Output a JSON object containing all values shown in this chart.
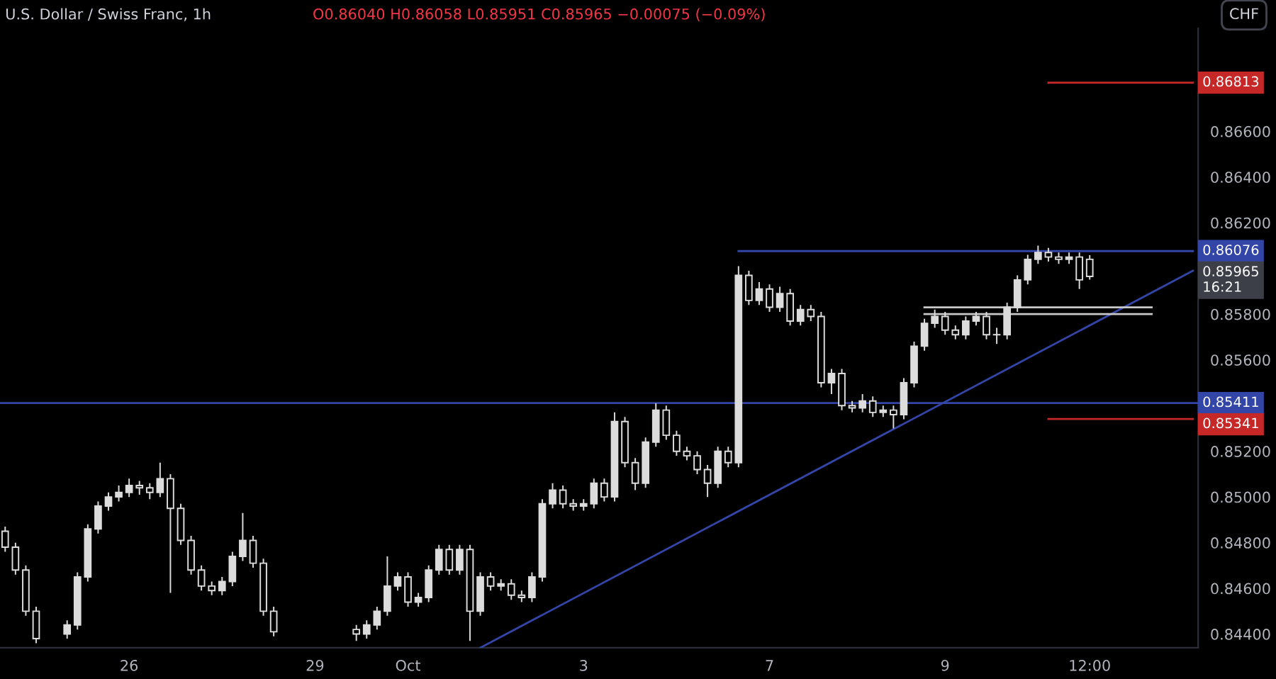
{
  "chart_data": {
    "type": "candlestick",
    "title": "U.S. Dollar / Swiss Franc, 1h",
    "subtitle": "O0.86040 H0.86058 L0.85951 C0.85965 −0.00075 (−0.09%)",
    "categories": [
      null,
      null,
      null,
      null,
      null,
      null,
      null,
      null,
      null,
      null,
      null,
      null,
      "26",
      null,
      null,
      null,
      null,
      null,
      null,
      null,
      null,
      null,
      null,
      null,
      null,
      null,
      null,
      null,
      null,
      null,
      "29",
      null,
      null,
      null,
      null,
      null,
      null,
      null,
      null,
      "Oct",
      null,
      null,
      null,
      null,
      null,
      null,
      null,
      null,
      null,
      null,
      null,
      null,
      null,
      null,
      null,
      null,
      "3",
      null,
      null,
      null,
      null,
      null,
      null,
      null,
      null,
      null,
      null,
      null,
      null,
      null,
      null,
      null,
      null,
      null,
      "7",
      null,
      null,
      null,
      null,
      null,
      null,
      null,
      null,
      null,
      null,
      null,
      null,
      null,
      null,
      null,
      null,
      "9",
      null,
      null,
      null,
      null,
      null,
      null,
      null,
      null,
      null,
      null,
      null,
      null,
      null,
      "12:00",
      null,
      null,
      null,
      null,
      null,
      null,
      null,
      null,
      null,
      null
    ],
    "ylim": [
      0.8434,
      0.8705
    ],
    "yticks": [
      {
        "value": 0.844,
        "label": "0.84400"
      },
      {
        "value": 0.846,
        "label": "0.84600"
      },
      {
        "value": 0.848,
        "label": "0.84800"
      },
      {
        "value": 0.85,
        "label": "0.85000"
      },
      {
        "value": 0.852,
        "label": "0.85200"
      },
      {
        "value": 0.856,
        "label": "0.85600"
      },
      {
        "value": 0.858,
        "label": "0.85800"
      },
      {
        "value": 0.862,
        "label": "0.86200"
      },
      {
        "value": 0.864,
        "label": "0.86400"
      },
      {
        "value": 0.866,
        "label": "0.86600"
      }
    ],
    "series": [
      {
        "color": "#dcdcdc",
        "ohlc": [
          [
            0.8485,
            0.8487,
            0.8476,
            0.8478
          ],
          [
            0.8478,
            0.848,
            0.8466,
            0.8468
          ],
          [
            0.8468,
            0.847,
            0.8448,
            0.845
          ],
          [
            0.845,
            0.8452,
            0.8436,
            0.8438
          ],
          null,
          null,
          [
            0.844,
            0.8446,
            0.8438,
            0.8444
          ],
          [
            0.8444,
            0.8467,
            0.8442,
            0.8465
          ],
          [
            0.8465,
            0.8488,
            0.8463,
            0.8486
          ],
          [
            0.8486,
            0.8498,
            0.8484,
            0.8496
          ],
          [
            0.8496,
            0.8502,
            0.8494,
            0.85
          ],
          [
            0.85,
            0.8505,
            0.8498,
            0.8502
          ],
          [
            0.8502,
            0.8508,
            0.85,
            0.8505
          ],
          [
            0.8505,
            0.8507,
            0.8501,
            0.8504
          ],
          [
            0.8504,
            0.8506,
            0.8499,
            0.8502
          ],
          [
            0.8502,
            0.8515,
            0.85,
            0.8508
          ],
          [
            0.8508,
            0.851,
            0.8458,
            0.8495
          ],
          [
            0.8495,
            0.8497,
            0.8479,
            0.8481
          ],
          [
            0.8481,
            0.8483,
            0.8466,
            0.8468
          ],
          [
            0.8468,
            0.847,
            0.8459,
            0.8461
          ],
          [
            0.8461,
            0.8463,
            0.8457,
            0.8459
          ],
          [
            0.8459,
            0.8465,
            0.8457,
            0.8463
          ],
          [
            0.8463,
            0.8476,
            0.8461,
            0.8474
          ],
          [
            0.8474,
            0.8493,
            0.8472,
            0.8481
          ],
          [
            0.8481,
            0.8483,
            0.8469,
            0.8471
          ],
          [
            0.8471,
            0.8473,
            0.8448,
            0.845
          ],
          [
            0.845,
            0.8452,
            0.8439,
            0.8441
          ],
          null,
          null,
          null,
          null,
          null,
          null,
          null,
          [
            0.8442,
            0.8444,
            0.8437,
            0.844
          ],
          [
            0.844,
            0.8446,
            0.8438,
            0.8444
          ],
          [
            0.8444,
            0.8452,
            0.8442,
            0.845
          ],
          [
            0.845,
            0.8474,
            0.8448,
            0.8461
          ],
          [
            0.8461,
            0.8467,
            0.8459,
            0.8465
          ],
          [
            0.8465,
            0.8467,
            0.8452,
            0.8454
          ],
          [
            0.8454,
            0.8458,
            0.8452,
            0.8456
          ],
          [
            0.8456,
            0.847,
            0.8454,
            0.8468
          ],
          [
            0.8468,
            0.8479,
            0.8466,
            0.8477
          ],
          [
            0.8477,
            0.8479,
            0.8466,
            0.8468
          ],
          [
            0.8468,
            0.8479,
            0.8466,
            0.8477
          ],
          [
            0.8477,
            0.8479,
            0.8437,
            0.845
          ],
          [
            0.845,
            0.8467,
            0.8448,
            0.8465
          ],
          [
            0.8465,
            0.8467,
            0.8459,
            0.8461
          ],
          [
            0.8461,
            0.8464,
            0.8459,
            0.8462
          ],
          [
            0.8462,
            0.8464,
            0.8455,
            0.8457
          ],
          [
            0.8457,
            0.8459,
            0.8454,
            0.8456
          ],
          [
            0.8456,
            0.8467,
            0.8454,
            0.8465
          ],
          [
            0.8465,
            0.8499,
            0.8463,
            0.8497
          ],
          [
            0.8497,
            0.8506,
            0.8495,
            0.8503
          ],
          [
            0.8503,
            0.8505,
            0.8495,
            0.8497
          ],
          [
            0.8497,
            0.8499,
            0.8494,
            0.8496
          ],
          [
            0.8496,
            0.8499,
            0.8494,
            0.8497
          ],
          [
            0.8497,
            0.8508,
            0.8495,
            0.8506
          ],
          [
            0.8506,
            0.8508,
            0.8498,
            0.85
          ],
          [
            0.85,
            0.8537,
            0.8498,
            0.8533
          ],
          [
            0.8533,
            0.8535,
            0.8513,
            0.8515
          ],
          [
            0.8515,
            0.8517,
            0.8503,
            0.8506
          ],
          [
            0.8506,
            0.8526,
            0.8504,
            0.8524
          ],
          [
            0.8524,
            0.8541,
            0.8522,
            0.8538
          ],
          [
            0.8538,
            0.854,
            0.8525,
            0.8527
          ],
          [
            0.8527,
            0.8529,
            0.8518,
            0.852
          ],
          [
            0.852,
            0.8522,
            0.8516,
            0.8518
          ],
          [
            0.8518,
            0.852,
            0.851,
            0.8512
          ],
          [
            0.8512,
            0.8514,
            0.85,
            0.8506
          ],
          [
            0.8506,
            0.8522,
            0.8504,
            0.852
          ],
          [
            0.852,
            0.8522,
            0.8513,
            0.8515
          ],
          [
            0.8515,
            0.8601,
            0.8513,
            0.8597
          ],
          [
            0.8597,
            0.8599,
            0.8584,
            0.8586
          ],
          [
            0.8586,
            0.8594,
            0.8584,
            0.8591
          ],
          [
            0.8591,
            0.8593,
            0.8581,
            0.8583
          ],
          [
            0.8583,
            0.8592,
            0.8581,
            0.8589
          ],
          [
            0.8589,
            0.8591,
            0.8575,
            0.8577
          ],
          [
            0.8577,
            0.8584,
            0.8575,
            0.8582
          ],
          [
            0.8582,
            0.8584,
            0.8577,
            0.8579
          ],
          [
            0.8579,
            0.8581,
            0.8548,
            0.855
          ],
          [
            0.855,
            0.8556,
            0.8545,
            0.8554
          ],
          [
            0.8554,
            0.8556,
            0.8538,
            0.854
          ],
          [
            0.854,
            0.8542,
            0.8537,
            0.8539
          ],
          [
            0.8539,
            0.8545,
            0.8537,
            0.8542
          ],
          [
            0.8542,
            0.8544,
            0.8535,
            0.8537
          ],
          [
            0.8537,
            0.854,
            0.8535,
            0.8538
          ],
          [
            0.8538,
            0.854,
            0.853,
            0.8536
          ],
          [
            0.8536,
            0.8552,
            0.8534,
            0.855
          ],
          [
            0.855,
            0.8568,
            0.8548,
            0.8566
          ],
          [
            0.8566,
            0.8578,
            0.8564,
            0.8576
          ],
          [
            0.8576,
            0.8582,
            0.8574,
            0.8579
          ],
          [
            0.8579,
            0.8581,
            0.8571,
            0.8573
          ],
          [
            0.8573,
            0.8575,
            0.8569,
            0.8571
          ],
          [
            0.8571,
            0.8579,
            0.8569,
            0.8577
          ],
          [
            0.8577,
            0.8581,
            0.8575,
            0.8579
          ],
          [
            0.8579,
            0.8581,
            0.8569,
            0.8571
          ],
          [
            0.8571,
            0.8574,
            0.8567,
            0.8571
          ],
          [
            0.8571,
            0.8585,
            0.8569,
            0.8583
          ],
          [
            0.8583,
            0.8597,
            0.8581,
            0.8595
          ],
          [
            0.8595,
            0.8606,
            0.8593,
            0.8604
          ],
          [
            0.8604,
            0.861,
            0.8602,
            0.8607
          ],
          [
            0.8607,
            0.8609,
            0.8603,
            0.8605
          ],
          [
            0.8605,
            0.8607,
            0.8602,
            0.8604
          ],
          [
            0.8604,
            0.8607,
            0.8602,
            0.8605
          ],
          [
            0.8605,
            0.8607,
            0.8591,
            0.8595
          ],
          [
            0.8604,
            0.86058,
            0.85951,
            0.85965
          ],
          null,
          null,
          null,
          null,
          null,
          null,
          null,
          null,
          null,
          null
        ]
      },
      {
        "type": "line",
        "color": "#3346a8",
        "values": [
          null,
          null,
          null,
          null,
          null,
          null,
          null,
          null,
          null,
          null,
          null,
          null,
          null,
          null,
          null,
          null,
          null,
          null,
          null,
          null,
          null,
          null,
          null,
          null,
          null,
          null,
          null,
          null,
          null,
          null,
          null,
          null,
          null,
          null,
          null,
          null,
          null,
          null,
          null,
          null,
          null,
          null,
          null,
          null,
          null,
          null,
          null,
          null,
          null,
          null,
          null,
          null,
          null,
          null,
          null,
          null,
          null,
          null,
          null,
          null,
          null,
          null,
          null,
          null,
          null,
          null,
          null,
          null,
          null,
          null,
          null,
          0.86076,
          null,
          null,
          null,
          null,
          null,
          null,
          null,
          null,
          null,
          null,
          null,
          null,
          null,
          null,
          null,
          null,
          null,
          null,
          null,
          null,
          null,
          null,
          null,
          null,
          null,
          null,
          null,
          null,
          null,
          null,
          null,
          null,
          null,
          null,
          null,
          null,
          null,
          null,
          null,
          null,
          null,
          null,
          null,
          0.86076
        ],
        "value_labels": [
          null,
          null,
          null,
          null,
          null,
          null,
          null,
          null,
          null,
          null,
          null,
          null,
          null,
          null,
          null,
          null,
          null,
          null,
          null,
          null,
          null,
          null,
          null,
          null,
          null,
          null,
          null,
          null,
          null,
          null,
          null,
          null,
          null,
          null,
          null,
          null,
          null,
          null,
          null,
          null,
          null,
          null,
          null,
          null,
          null,
          null,
          null,
          null,
          null,
          null,
          null,
          null,
          null,
          null,
          null,
          null,
          null,
          null,
          null,
          null,
          null,
          null,
          null,
          null,
          null,
          null,
          null,
          null,
          null,
          null,
          null,
          null,
          null,
          null,
          null,
          null,
          null,
          null,
          null,
          null,
          null,
          null,
          null,
          null,
          null,
          null,
          null,
          null,
          null,
          null,
          null,
          null,
          null,
          null,
          null,
          null,
          null,
          null,
          null,
          null,
          null,
          null,
          null,
          null,
          null,
          null,
          null,
          null,
          null,
          null,
          null,
          null,
          null,
          null,
          null,
          "0.86076"
        ]
      },
      {
        "type": "line",
        "color": "#c62828",
        "values": [
          null,
          null,
          null,
          null,
          null,
          null,
          null,
          null,
          null,
          null,
          null,
          null,
          null,
          null,
          null,
          null,
          null,
          null,
          null,
          null,
          null,
          null,
          null,
          null,
          null,
          null,
          null,
          null,
          null,
          null,
          null,
          null,
          null,
          null,
          null,
          null,
          null,
          null,
          null,
          null,
          null,
          null,
          null,
          null,
          null,
          null,
          null,
          null,
          null,
          null,
          null,
          null,
          null,
          null,
          null,
          null,
          null,
          null,
          null,
          null,
          null,
          null,
          null,
          null,
          null,
          null,
          null,
          null,
          null,
          null,
          null,
          null,
          null,
          null,
          null,
          null,
          null,
          null,
          null,
          null,
          null,
          null,
          null,
          null,
          null,
          null,
          null,
          null,
          null,
          null,
          null,
          null,
          null,
          null,
          null,
          null,
          null,
          null,
          null,
          null,
          null,
          0.86813,
          null,
          null,
          null,
          null,
          null,
          null,
          null,
          null,
          null,
          null,
          null,
          null,
          null,
          0.86813
        ],
        "value_labels": [
          null,
          null,
          null,
          null,
          null,
          null,
          null,
          null,
          null,
          null,
          null,
          null,
          null,
          null,
          null,
          null,
          null,
          null,
          null,
          null,
          null,
          null,
          null,
          null,
          null,
          null,
          null,
          null,
          null,
          null,
          null,
          null,
          null,
          null,
          null,
          null,
          null,
          null,
          null,
          null,
          null,
          null,
          null,
          null,
          null,
          null,
          null,
          null,
          null,
          null,
          null,
          null,
          null,
          null,
          null,
          null,
          null,
          null,
          null,
          null,
          null,
          null,
          null,
          null,
          null,
          null,
          null,
          null,
          null,
          null,
          null,
          null,
          null,
          null,
          null,
          null,
          null,
          null,
          null,
          null,
          null,
          null,
          null,
          null,
          null,
          null,
          null,
          null,
          null,
          null,
          null,
          null,
          null,
          null,
          null,
          null,
          null,
          null,
          null,
          null,
          null,
          null,
          null,
          null,
          null,
          null,
          null,
          null,
          null,
          null,
          null,
          null,
          null,
          null,
          null,
          "0.86813"
        ]
      },
      {
        "type": "line",
        "color": "#c62828",
        "values": [
          null,
          null,
          null,
          null,
          null,
          null,
          null,
          null,
          null,
          null,
          null,
          null,
          null,
          null,
          null,
          null,
          null,
          null,
          null,
          null,
          null,
          null,
          null,
          null,
          null,
          null,
          null,
          null,
          null,
          null,
          null,
          null,
          null,
          null,
          null,
          null,
          null,
          null,
          null,
          null,
          null,
          null,
          null,
          null,
          null,
          null,
          null,
          null,
          null,
          null,
          null,
          null,
          null,
          null,
          null,
          null,
          null,
          null,
          null,
          null,
          null,
          null,
          null,
          null,
          null,
          null,
          null,
          null,
          null,
          null,
          null,
          null,
          null,
          null,
          null,
          null,
          null,
          null,
          null,
          null,
          null,
          null,
          null,
          null,
          null,
          null,
          null,
          null,
          null,
          null,
          null,
          null,
          null,
          null,
          null,
          null,
          null,
          null,
          null,
          null,
          null,
          0.85341,
          null,
          null,
          null,
          null,
          null,
          null,
          null,
          null,
          null,
          null,
          null,
          null,
          null,
          0.85341
        ],
        "value_labels": [
          null,
          null,
          null,
          null,
          null,
          null,
          null,
          null,
          null,
          null,
          null,
          null,
          null,
          null,
          null,
          null,
          null,
          null,
          null,
          null,
          null,
          null,
          null,
          null,
          null,
          null,
          null,
          null,
          null,
          null,
          null,
          null,
          null,
          null,
          null,
          null,
          null,
          null,
          null,
          null,
          null,
          null,
          null,
          null,
          null,
          null,
          null,
          null,
          null,
          null,
          null,
          null,
          null,
          null,
          null,
          null,
          null,
          null,
          null,
          null,
          null,
          null,
          null,
          null,
          null,
          null,
          null,
          null,
          null,
          null,
          null,
          null,
          null,
          null,
          null,
          null,
          null,
          null,
          null,
          null,
          null,
          null,
          null,
          null,
          null,
          null,
          null,
          null,
          null,
          null,
          null,
          null,
          null,
          null,
          null,
          null,
          null,
          null,
          null,
          null,
          null,
          null,
          null,
          null,
          null,
          null,
          null,
          null,
          null,
          null,
          null,
          null,
          null,
          null,
          null,
          "0.85341"
        ]
      },
      {
        "type": "line",
        "color": "#3346a8",
        "values": [
          null,
          null,
          null,
          null,
          null,
          null,
          null,
          null,
          null,
          null,
          null,
          null,
          null,
          null,
          null,
          null,
          null,
          null,
          null,
          null,
          null,
          null,
          null,
          null,
          null,
          null,
          null,
          null,
          null,
          null,
          null,
          null,
          null,
          null,
          null,
          null,
          null,
          null,
          null,
          null,
          null,
          null,
          null,
          null,
          null,
          null,
          0.8434,
          null,
          null,
          null,
          null,
          null,
          null,
          null,
          null,
          null,
          null,
          null,
          null,
          null,
          null,
          null,
          null,
          null,
          null,
          null,
          null,
          null,
          null,
          null,
          null,
          null,
          null,
          null,
          null,
          null,
          null,
          null,
          null,
          null,
          null,
          null,
          null,
          null,
          null,
          null,
          null,
          null,
          null,
          null,
          null,
          null,
          null,
          null,
          null,
          null,
          null,
          null,
          null,
          null,
          null,
          null,
          null,
          null,
          null,
          null,
          null,
          null,
          null,
          null,
          null,
          null,
          null,
          null,
          null,
          0.8599
        ]
      },
      {
        "type": "line",
        "color": "#c8c8c8",
        "values": [
          null,
          null,
          null,
          null,
          null,
          null,
          null,
          null,
          null,
          null,
          null,
          null,
          null,
          null,
          null,
          null,
          null,
          null,
          null,
          null,
          null,
          null,
          null,
          null,
          null,
          null,
          null,
          null,
          null,
          null,
          null,
          null,
          null,
          null,
          null,
          null,
          null,
          null,
          null,
          null,
          null,
          null,
          null,
          null,
          null,
          null,
          null,
          null,
          null,
          null,
          null,
          null,
          null,
          null,
          null,
          null,
          null,
          null,
          null,
          null,
          null,
          null,
          null,
          null,
          null,
          null,
          null,
          null,
          null,
          null,
          null,
          null,
          null,
          null,
          null,
          null,
          null,
          null,
          null,
          null,
          null,
          null,
          null,
          null,
          null,
          null,
          null,
          null,
          null,
          0.8583,
          null,
          null,
          null,
          null,
          null,
          null,
          null,
          null,
          null,
          null,
          null,
          null,
          null,
          null,
          null,
          null,
          null,
          null,
          null,
          null,
          null,
          0.8583,
          null,
          null,
          null,
          null
        ]
      },
      {
        "type": "line",
        "color": "#c8c8c8",
        "values": [
          null,
          null,
          null,
          null,
          null,
          null,
          null,
          null,
          null,
          null,
          null,
          null,
          null,
          null,
          null,
          null,
          null,
          null,
          null,
          null,
          null,
          null,
          null,
          null,
          null,
          null,
          null,
          null,
          null,
          null,
          null,
          null,
          null,
          null,
          null,
          null,
          null,
          null,
          null,
          null,
          null,
          null,
          null,
          null,
          null,
          null,
          null,
          null,
          null,
          null,
          null,
          null,
          null,
          null,
          null,
          null,
          null,
          null,
          null,
          null,
          null,
          null,
          null,
          null,
          null,
          null,
          null,
          null,
          null,
          null,
          null,
          null,
          null,
          null,
          null,
          null,
          null,
          null,
          null,
          null,
          null,
          null,
          null,
          null,
          null,
          null,
          null,
          null,
          null,
          0.858,
          null,
          null,
          null,
          null,
          null,
          null,
          null,
          null,
          null,
          null,
          null,
          null,
          null,
          null,
          null,
          null,
          null,
          null,
          null,
          null,
          null,
          0.858,
          null,
          null,
          null,
          null
        ]
      }
    ],
    "ref_lines": [
      {
        "axis": "y",
        "value": 0.85411,
        "label": "0.85411",
        "color": "#3346a8"
      }
    ],
    "annotations": [
      "CHF",
      "0.85965\n16:21"
    ]
  }
}
